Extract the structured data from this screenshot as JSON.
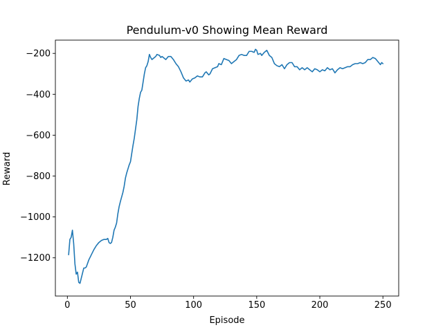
{
  "chart_data": {
    "type": "line",
    "title": "Pendulum-v0 Showing Mean Reward",
    "xlabel": "Episode",
    "ylabel": "Reward",
    "xlim": [
      -9.5,
      262.5
    ],
    "ylim": [
      -1387,
      -135
    ],
    "xticks": [
      0,
      50,
      100,
      150,
      200,
      250
    ],
    "yticks": [
      -1200,
      -1000,
      -800,
      -600,
      -400,
      -200
    ],
    "xtick_labels": [
      "0",
      "50",
      "100",
      "150",
      "200",
      "250"
    ],
    "ytick_labels": [
      "−1200",
      "−1000",
      "−800",
      "−600",
      "−400",
      "−200"
    ],
    "grid": false,
    "line_color": "#1f77b4",
    "series": [
      {
        "points": [
          [
            1,
            -1185
          ],
          [
            2,
            -1110
          ],
          [
            3,
            -1100
          ],
          [
            4,
            -1065
          ],
          [
            5,
            -1130
          ],
          [
            6,
            -1230
          ],
          [
            7,
            -1280
          ],
          [
            8,
            -1270
          ],
          [
            9,
            -1320
          ],
          [
            10,
            -1325
          ],
          [
            11,
            -1300
          ],
          [
            12,
            -1275
          ],
          [
            13,
            -1250
          ],
          [
            14,
            -1250
          ],
          [
            15,
            -1245
          ],
          [
            17,
            -1210
          ],
          [
            19,
            -1185
          ],
          [
            21,
            -1160
          ],
          [
            23,
            -1140
          ],
          [
            25,
            -1125
          ],
          [
            27,
            -1115
          ],
          [
            29,
            -1110
          ],
          [
            31,
            -1110
          ],
          [
            32,
            -1105
          ],
          [
            33,
            -1125
          ],
          [
            34,
            -1130
          ],
          [
            35,
            -1125
          ],
          [
            36,
            -1100
          ],
          [
            37,
            -1065
          ],
          [
            38,
            -1050
          ],
          [
            39,
            -1030
          ],
          [
            40,
            -985
          ],
          [
            41,
            -950
          ],
          [
            42,
            -925
          ],
          [
            44,
            -880
          ],
          [
            45,
            -850
          ],
          [
            46,
            -810
          ],
          [
            47,
            -785
          ],
          [
            48,
            -765
          ],
          [
            49,
            -745
          ],
          [
            50,
            -730
          ],
          [
            51,
            -690
          ],
          [
            52,
            -650
          ],
          [
            53,
            -615
          ],
          [
            54,
            -570
          ],
          [
            55,
            -525
          ],
          [
            56,
            -460
          ],
          [
            57,
            -420
          ],
          [
            58,
            -390
          ],
          [
            59,
            -380
          ],
          [
            60,
            -340
          ],
          [
            61,
            -300
          ],
          [
            62,
            -270
          ],
          [
            63,
            -260
          ],
          [
            64,
            -240
          ],
          [
            65,
            -205
          ],
          [
            66,
            -220
          ],
          [
            67,
            -230
          ],
          [
            68,
            -225
          ],
          [
            70,
            -215
          ],
          [
            71,
            -205
          ],
          [
            73,
            -210
          ],
          [
            74,
            -220
          ],
          [
            75,
            -215
          ],
          [
            77,
            -225
          ],
          [
            78,
            -230
          ],
          [
            80,
            -215
          ],
          [
            82,
            -215
          ],
          [
            84,
            -230
          ],
          [
            86,
            -250
          ],
          [
            88,
            -265
          ],
          [
            90,
            -290
          ],
          [
            92,
            -320
          ],
          [
            94,
            -335
          ],
          [
            96,
            -330
          ],
          [
            97,
            -340
          ],
          [
            99,
            -325
          ],
          [
            101,
            -320
          ],
          [
            103,
            -310
          ],
          [
            105,
            -315
          ],
          [
            107,
            -315
          ],
          [
            109,
            -295
          ],
          [
            110,
            -290
          ],
          [
            112,
            -305
          ],
          [
            113,
            -300
          ],
          [
            115,
            -275
          ],
          [
            117,
            -270
          ],
          [
            119,
            -265
          ],
          [
            120,
            -250
          ],
          [
            122,
            -255
          ],
          [
            124,
            -225
          ],
          [
            126,
            -230
          ],
          [
            128,
            -235
          ],
          [
            130,
            -250
          ],
          [
            132,
            -240
          ],
          [
            134,
            -230
          ],
          [
            136,
            -210
          ],
          [
            138,
            -205
          ],
          [
            140,
            -210
          ],
          [
            142,
            -210
          ],
          [
            144,
            -190
          ],
          [
            146,
            -190
          ],
          [
            148,
            -195
          ],
          [
            149,
            -180
          ],
          [
            150,
            -185
          ],
          [
            151,
            -205
          ],
          [
            153,
            -200
          ],
          [
            154,
            -210
          ],
          [
            156,
            -195
          ],
          [
            158,
            -185
          ],
          [
            160,
            -210
          ],
          [
            162,
            -220
          ],
          [
            164,
            -250
          ],
          [
            166,
            -260
          ],
          [
            168,
            -265
          ],
          [
            170,
            -255
          ],
          [
            172,
            -275
          ],
          [
            174,
            -255
          ],
          [
            176,
            -245
          ],
          [
            178,
            -245
          ],
          [
            180,
            -265
          ],
          [
            182,
            -265
          ],
          [
            184,
            -280
          ],
          [
            186,
            -270
          ],
          [
            188,
            -280
          ],
          [
            190,
            -270
          ],
          [
            192,
            -280
          ],
          [
            194,
            -290
          ],
          [
            196,
            -275
          ],
          [
            198,
            -280
          ],
          [
            200,
            -290
          ],
          [
            202,
            -280
          ],
          [
            204,
            -285
          ],
          [
            206,
            -270
          ],
          [
            208,
            -280
          ],
          [
            210,
            -275
          ],
          [
            212,
            -295
          ],
          [
            214,
            -280
          ],
          [
            216,
            -270
          ],
          [
            218,
            -275
          ],
          [
            220,
            -270
          ],
          [
            222,
            -265
          ],
          [
            224,
            -265
          ],
          [
            226,
            -255
          ],
          [
            228,
            -250
          ],
          [
            230,
            -250
          ],
          [
            232,
            -245
          ],
          [
            234,
            -250
          ],
          [
            236,
            -245
          ],
          [
            238,
            -230
          ],
          [
            240,
            -230
          ],
          [
            242,
            -220
          ],
          [
            244,
            -225
          ],
          [
            246,
            -240
          ],
          [
            248,
            -255
          ],
          [
            249,
            -245
          ],
          [
            250,
            -250
          ]
        ]
      }
    ]
  }
}
